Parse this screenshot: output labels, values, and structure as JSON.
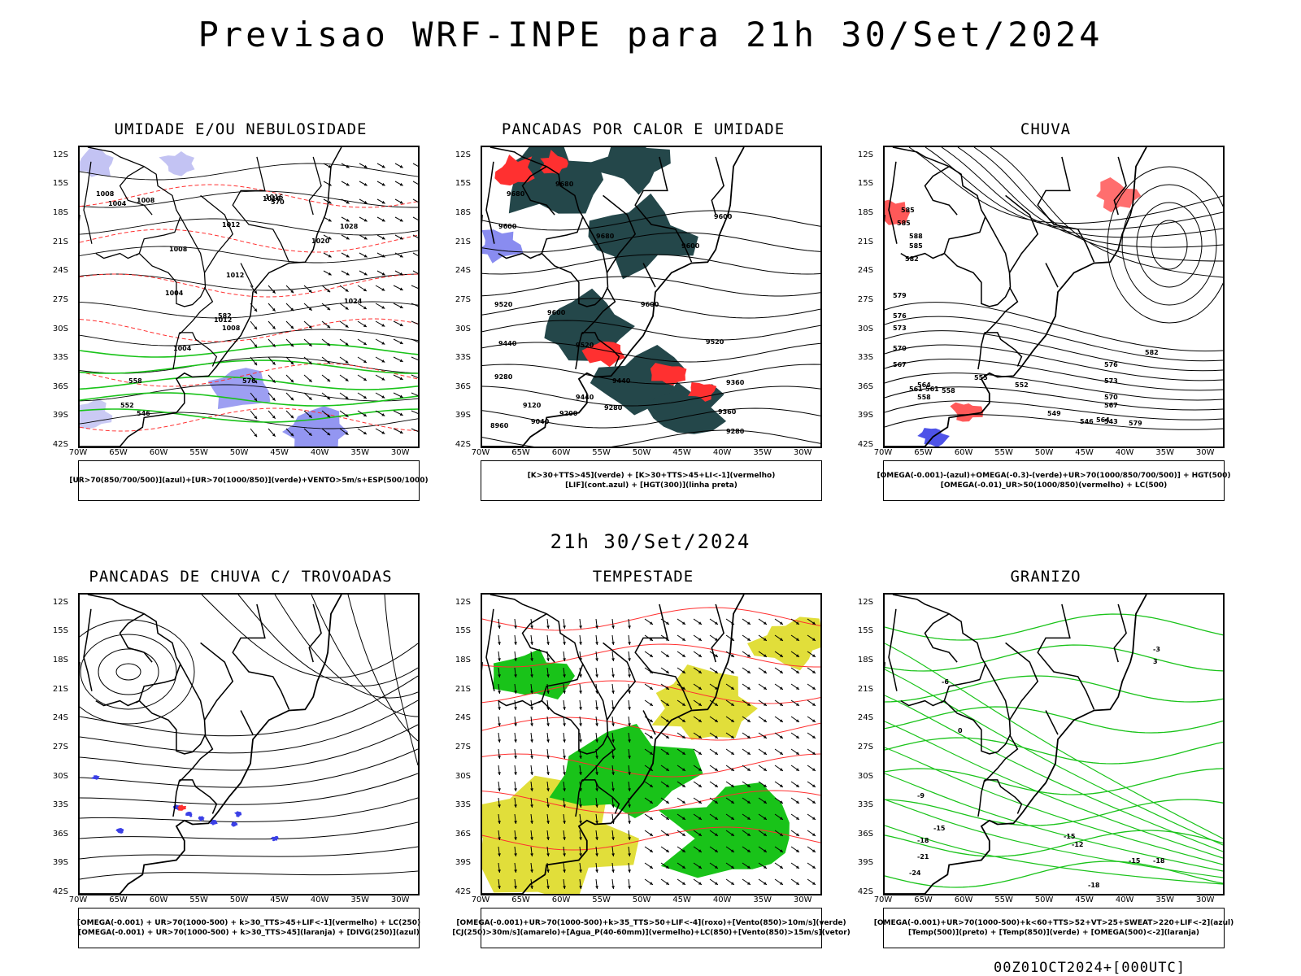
{
  "header": {
    "title": "Previsao WRF-INPE  para 21h 30/Set/2024"
  },
  "mid_time": "21h 30/Set/2024",
  "footer": "00Z01OCT2024+[000UTC]",
  "axes": {
    "lat_labels": [
      "12S",
      "15S",
      "18S",
      "21S",
      "24S",
      "27S",
      "30S",
      "33S",
      "36S",
      "39S",
      "42S"
    ],
    "lon_labels": [
      "70W",
      "65W",
      "60W",
      "55W",
      "50W",
      "45W",
      "40W",
      "35W",
      "30W"
    ]
  },
  "colors": {
    "blue": "#3b40e6",
    "green": "#19c319",
    "red": "#ff3030",
    "darkteal": "#24474a",
    "yellow": "#e1de3a",
    "lightblue": "#b4b4f0",
    "black": "#000000"
  },
  "panels": [
    {
      "id": "umidade",
      "title": "UMIDADE E/OU NEBULOSIDADE",
      "legend": [
        "[UR>70(850/700/500)](azul)+[UR>70(1000/850)](verde)+VENTO>5m/s+ESP(500/1000)"
      ],
      "contour_labels": [
        "1008",
        "1004",
        "1008",
        "1012",
        "1016",
        "1020",
        "1028",
        "1008",
        "1004",
        "1012",
        "1008",
        "1004",
        "1024",
        "1016",
        "1012",
        "570",
        "582",
        "576",
        "546",
        "552",
        "558"
      ]
    },
    {
      "id": "pancadas-calor",
      "title": "PANCADAS POR CALOR E UMIDADE",
      "legend": [
        "[K>30+TTS>45](verde) + [K>30+TTS>45+LI<-1](vermelho)",
        "[LIF](cont.azul) + [HGT(300)](linha preta)"
      ],
      "contour_labels": [
        "9680",
        "9680",
        "9600",
        "9680",
        "9600",
        "9600",
        "9520",
        "9600",
        "9600",
        "9520",
        "9520",
        "9440",
        "9440",
        "9360",
        "9440",
        "9280",
        "9120",
        "9200",
        "9280",
        "9360",
        "9280",
        "8960",
        "9040"
      ]
    },
    {
      "id": "chuva",
      "title": "CHUVA",
      "legend": [
        "[OMEGA(-0.001)-(azul)+OMEGA(-0.3)-(verde)+UR>70(1000/850/700/500)] + HGT(500)",
        "[OMEGA(-0.01)_UR>50(1000/850)(vermelho) + LC(500)"
      ],
      "contour_labels": [
        "585",
        "585",
        "588",
        "585",
        "582",
        "579",
        "576",
        "573",
        "570",
        "567",
        "564",
        "561",
        "558",
        "555",
        "552",
        "549",
        "546",
        "543",
        "579",
        "576",
        "573",
        "570",
        "567",
        "564",
        "582",
        "561",
        "558"
      ]
    },
    {
      "id": "pancadas-trovoadas",
      "title": "PANCADAS DE CHUVA C/ TROVOADAS",
      "legend": [
        "[OMEGA(-0.001) + UR>70(1000-500) + k>30_TTS>45+LIF<-1](vermelho) + LC(250)",
        "[OMEGA(-0.001) + UR>70(1000-500) + k>30_TTS>45](laranja) + [DIVG(250)](azul)"
      ],
      "contour_labels": []
    },
    {
      "id": "tempestade",
      "title": "TEMPESTADE",
      "legend": [
        "[OMEGA(-0.001)+UR>70(1000-500)+k>35_TTS>50+LIF<-4](roxo)+[Vento(850)>10m/s](verde)",
        "[CJ(250)>30m/s](amarelo)+[Agua_P(40-60mm)](vermelho)+LC(850)+[Vento(850)>15m/s](vetor)"
      ],
      "contour_labels": []
    },
    {
      "id": "granizo",
      "title": "GRANIZO",
      "legend": [
        "[OMEGA(-0.001)+UR>70(1000-500)+k<60+TTS>52+VT>25+SWEAT>220+LIF<-2](azul)",
        "[Temp(500)](preto) + [Temp(850)](verde) + [OMEGA(500)<-2](laranja)"
      ],
      "contour_labels": [
        "-3",
        "3",
        "-6",
        "0",
        "-9",
        "-15",
        "-18",
        "-21",
        "-24",
        "-18",
        "-15",
        "-12",
        "-15",
        "-18"
      ]
    }
  ]
}
